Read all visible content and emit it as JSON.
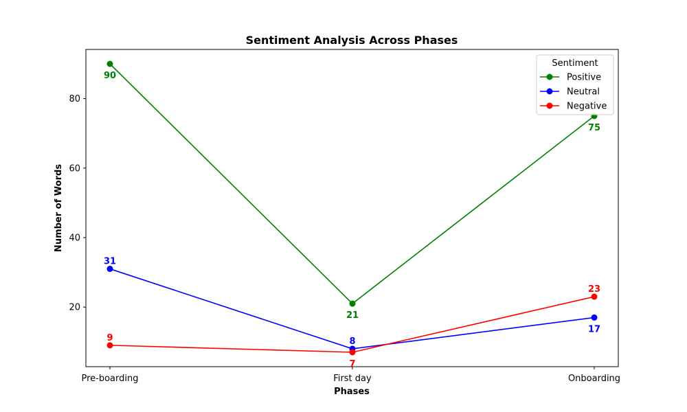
{
  "chart_data": {
    "type": "line",
    "title": "Sentiment Analysis Across Phases",
    "xlabel": "Phases",
    "ylabel": "Number of Words",
    "categories": [
      "Pre-boarding",
      "First day",
      "Onboarding"
    ],
    "ylim": [
      2.85,
      94.15
    ],
    "yticks": [
      20,
      40,
      60,
      80
    ],
    "grid": false,
    "legend": {
      "title": "Sentiment",
      "placement": "top-right"
    },
    "series": [
      {
        "name": "Positive",
        "color": "#008000",
        "values": [
          90,
          21,
          75
        ],
        "label_pos": [
          "below",
          "below",
          "below"
        ]
      },
      {
        "name": "Neutral",
        "color": "#0000ff",
        "values": [
          31,
          8,
          17
        ],
        "label_pos": [
          "above",
          "above",
          "below"
        ]
      },
      {
        "name": "Negative",
        "color": "#ff0000",
        "values": [
          9,
          7,
          23
        ],
        "label_pos": [
          "above",
          "below",
          "above"
        ]
      }
    ]
  }
}
